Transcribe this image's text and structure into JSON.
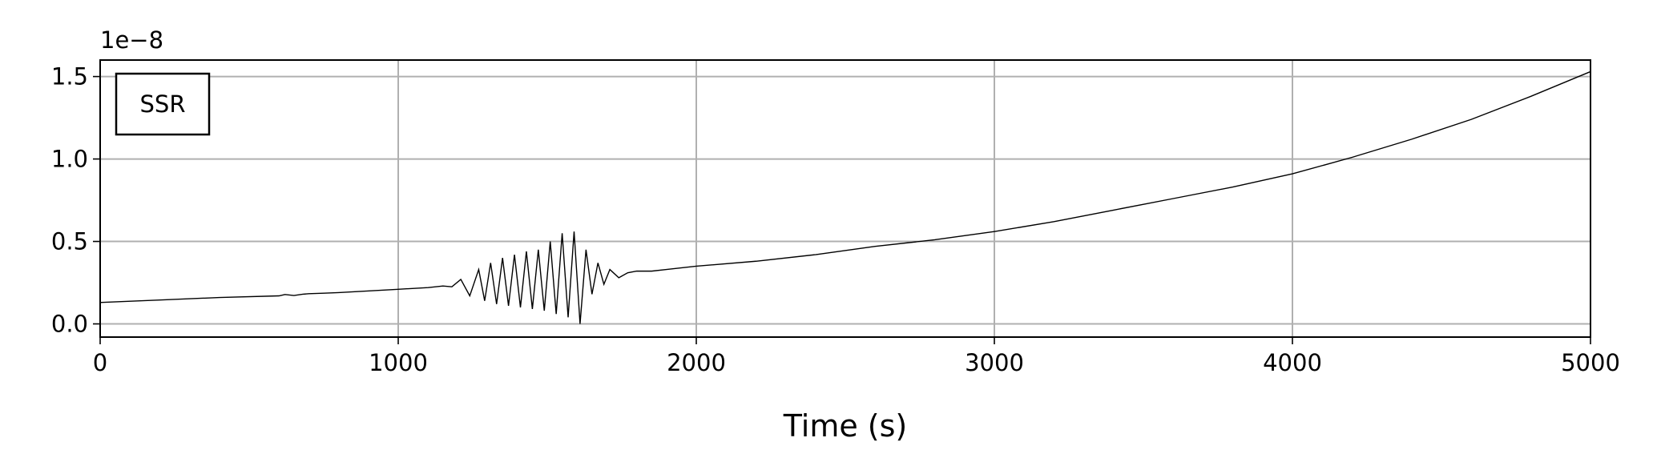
{
  "chart_data": {
    "type": "line",
    "x_label": "Time (s)",
    "y_offset_label": "1e−8",
    "x": [
      0,
      200,
      400,
      600,
      620,
      650,
      680,
      700,
      750,
      800,
      1000,
      1100,
      1150,
      1180,
      1210,
      1240,
      1270,
      1290,
      1310,
      1330,
      1350,
      1370,
      1390,
      1410,
      1430,
      1450,
      1470,
      1490,
      1510,
      1530,
      1550,
      1570,
      1590,
      1610,
      1630,
      1650,
      1670,
      1690,
      1710,
      1740,
      1770,
      1800,
      1850,
      1900,
      2000,
      2200,
      2400,
      2600,
      2800,
      3000,
      3200,
      3400,
      3600,
      3800,
      4000,
      4200,
      4400,
      4600,
      4800,
      5000
    ],
    "series": [
      {
        "name": "SSR",
        "color": "#000000",
        "values": [
          0.13,
          0.145,
          0.16,
          0.17,
          0.178,
          0.172,
          0.18,
          0.183,
          0.186,
          0.19,
          0.21,
          0.22,
          0.23,
          0.225,
          0.27,
          0.17,
          0.33,
          0.14,
          0.37,
          0.12,
          0.4,
          0.11,
          0.42,
          0.1,
          0.44,
          0.09,
          0.45,
          0.08,
          0.5,
          0.06,
          0.55,
          0.04,
          0.56,
          0.0,
          0.45,
          0.18,
          0.37,
          0.24,
          0.33,
          0.28,
          0.31,
          0.32,
          0.32,
          0.33,
          0.35,
          0.38,
          0.42,
          0.47,
          0.51,
          0.56,
          0.62,
          0.69,
          0.76,
          0.83,
          0.91,
          1.01,
          1.12,
          1.24,
          1.38,
          1.53
        ]
      }
    ],
    "xlim": [
      0,
      5000
    ],
    "xticks": [
      0,
      1000,
      2000,
      3000,
      4000,
      5000
    ],
    "ylim": [
      -0.08,
      1.6
    ],
    "yticks": [
      {
        "value": 0,
        "label": "0.0"
      },
      0.5,
      {
        "value": 1,
        "label": "1.0"
      },
      1.5
    ],
    "grid": true,
    "legend": "upper left"
  }
}
